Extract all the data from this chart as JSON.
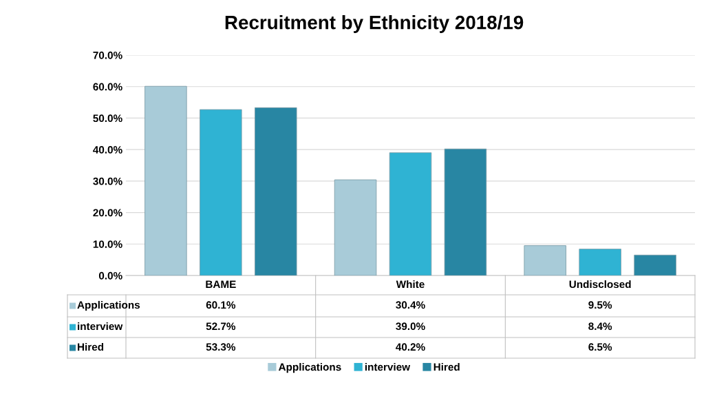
{
  "chart_data": {
    "type": "bar",
    "title": "Recruitment by Ethnicity 2018/19",
    "categories": [
      "BAME",
      "White",
      "Undisclosed"
    ],
    "series": [
      {
        "name": "Applications",
        "color": "#a8cbd8",
        "values": [
          60.1,
          30.4,
          9.5
        ],
        "value_labels": [
          "60.1%",
          "30.4%",
          "9.5%"
        ]
      },
      {
        "name": "interview",
        "color": "#2fb3d3",
        "values": [
          52.7,
          39.0,
          8.4
        ],
        "value_labels": [
          "52.7%",
          "39.0%",
          "8.4%"
        ]
      },
      {
        "name": "Hired",
        "color": "#2886a3",
        "values": [
          53.3,
          40.2,
          6.5
        ],
        "value_labels": [
          "53.3%",
          "40.2%",
          "6.5%"
        ]
      }
    ],
    "ylim": [
      0,
      70
    ],
    "yticks": [
      {
        "value": 0,
        "label": "0.0%"
      },
      {
        "value": 10,
        "label": "10.0%"
      },
      {
        "value": 20,
        "label": "20.0%"
      },
      {
        "value": 30,
        "label": "30.0%"
      },
      {
        "value": 40,
        "label": "40.0%"
      },
      {
        "value": 50,
        "label": "50.0%"
      },
      {
        "value": 60,
        "label": "60.0%"
      },
      {
        "value": 70,
        "label": "70.0%"
      }
    ],
    "grid": "y",
    "legend": "bottom"
  }
}
